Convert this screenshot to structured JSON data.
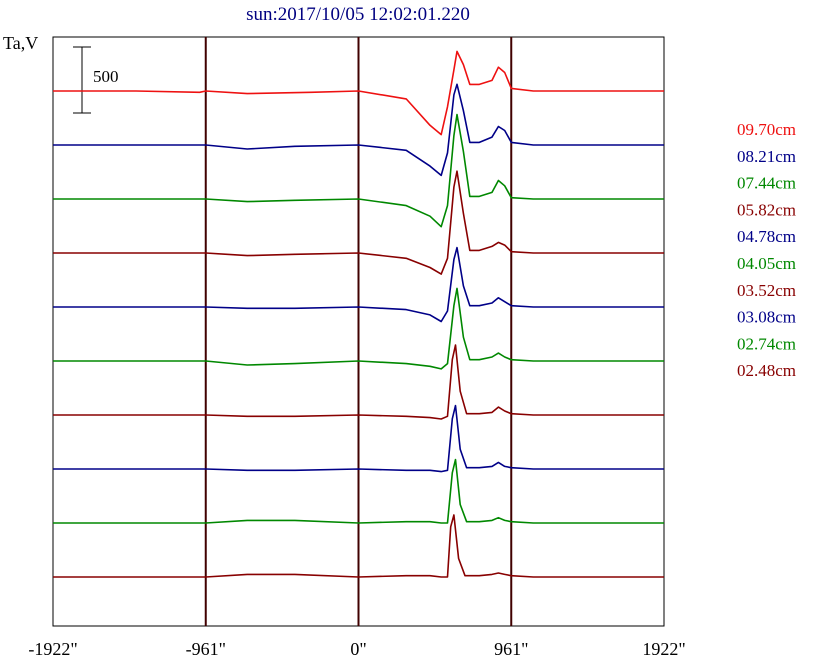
{
  "chart_data": {
    "type": "line",
    "title": "sun:2017/10/05 12:02:01.220",
    "ylabel": "Ta,V",
    "scale_bar_label": "500",
    "x_ticks": [
      {
        "label": "-1922\"",
        "value": -1922
      },
      {
        "label": "-961\"",
        "value": -961
      },
      {
        "label": "0\"",
        "value": 0
      },
      {
        "label": "961\"",
        "value": 961
      },
      {
        "label": "1922\"",
        "value": 1922
      }
    ],
    "xlim": [
      -1922,
      1922
    ],
    "grid_x": [
      -961,
      0,
      961
    ],
    "legend_position": "right",
    "series": [
      {
        "name": "09.70cm",
        "color": "#ee1111",
        "baseline": 0,
        "points": [
          [
            -1922,
            0
          ],
          [
            -1400,
            0
          ],
          [
            -1000,
            -10
          ],
          [
            -961,
            0
          ],
          [
            -700,
            -20
          ],
          [
            -300,
            -10
          ],
          [
            0,
            0
          ],
          [
            300,
            -60
          ],
          [
            450,
            -260
          ],
          [
            520,
            -330
          ],
          [
            560,
            -120
          ],
          [
            600,
            160
          ],
          [
            620,
            300
          ],
          [
            660,
            200
          ],
          [
            700,
            50
          ],
          [
            760,
            50
          ],
          [
            840,
            80
          ],
          [
            880,
            180
          ],
          [
            920,
            140
          ],
          [
            961,
            20
          ],
          [
            1100,
            0
          ],
          [
            1922,
            0
          ]
        ]
      },
      {
        "name": "08.21cm",
        "color": "#000088",
        "baseline": 0,
        "points": [
          [
            -1922,
            0
          ],
          [
            -961,
            0
          ],
          [
            -700,
            -30
          ],
          [
            -400,
            -10
          ],
          [
            0,
            0
          ],
          [
            300,
            -40
          ],
          [
            450,
            -160
          ],
          [
            520,
            -230
          ],
          [
            560,
            -60
          ],
          [
            600,
            380
          ],
          [
            620,
            460
          ],
          [
            660,
            260
          ],
          [
            700,
            20
          ],
          [
            760,
            20
          ],
          [
            840,
            60
          ],
          [
            880,
            140
          ],
          [
            920,
            110
          ],
          [
            961,
            20
          ],
          [
            1100,
            0
          ],
          [
            1922,
            0
          ]
        ]
      },
      {
        "name": "07.44cm",
        "color": "#008800",
        "baseline": 0,
        "points": [
          [
            -1922,
            0
          ],
          [
            -961,
            0
          ],
          [
            -700,
            -20
          ],
          [
            -400,
            -10
          ],
          [
            0,
            0
          ],
          [
            300,
            -50
          ],
          [
            450,
            -130
          ],
          [
            520,
            -210
          ],
          [
            560,
            -50
          ],
          [
            600,
            480
          ],
          [
            620,
            640
          ],
          [
            660,
            360
          ],
          [
            700,
            20
          ],
          [
            760,
            20
          ],
          [
            840,
            50
          ],
          [
            880,
            140
          ],
          [
            920,
            100
          ],
          [
            961,
            10
          ],
          [
            1100,
            0
          ],
          [
            1922,
            0
          ]
        ]
      },
      {
        "name": "05.82cm",
        "color": "#880000",
        "baseline": 0,
        "points": [
          [
            -1922,
            0
          ],
          [
            -961,
            0
          ],
          [
            -700,
            -20
          ],
          [
            -400,
            -10
          ],
          [
            0,
            0
          ],
          [
            300,
            -40
          ],
          [
            450,
            -110
          ],
          [
            520,
            -160
          ],
          [
            560,
            -40
          ],
          [
            600,
            500
          ],
          [
            620,
            620
          ],
          [
            660,
            300
          ],
          [
            700,
            20
          ],
          [
            760,
            20
          ],
          [
            840,
            50
          ],
          [
            880,
            80
          ],
          [
            920,
            60
          ],
          [
            961,
            10
          ],
          [
            1100,
            0
          ],
          [
            1922,
            0
          ]
        ]
      },
      {
        "name": "04.78cm",
        "color": "#000088",
        "baseline": 0,
        "points": [
          [
            -1922,
            0
          ],
          [
            -961,
            0
          ],
          [
            -700,
            -10
          ],
          [
            -400,
            -10
          ],
          [
            0,
            0
          ],
          [
            300,
            -20
          ],
          [
            450,
            -60
          ],
          [
            520,
            -110
          ],
          [
            560,
            -30
          ],
          [
            600,
            360
          ],
          [
            620,
            450
          ],
          [
            660,
            160
          ],
          [
            700,
            10
          ],
          [
            760,
            10
          ],
          [
            840,
            30
          ],
          [
            880,
            70
          ],
          [
            920,
            40
          ],
          [
            961,
            10
          ],
          [
            1100,
            0
          ],
          [
            1922,
            0
          ]
        ]
      },
      {
        "name": "04.05cm",
        "color": "#008800",
        "baseline": 0,
        "points": [
          [
            -1922,
            0
          ],
          [
            -961,
            0
          ],
          [
            -700,
            -30
          ],
          [
            -400,
            -20
          ],
          [
            0,
            0
          ],
          [
            300,
            -20
          ],
          [
            450,
            -40
          ],
          [
            520,
            -60
          ],
          [
            560,
            -20
          ],
          [
            600,
            420
          ],
          [
            620,
            550
          ],
          [
            660,
            180
          ],
          [
            700,
            10
          ],
          [
            760,
            10
          ],
          [
            840,
            30
          ],
          [
            880,
            60
          ],
          [
            920,
            30
          ],
          [
            961,
            10
          ],
          [
            1100,
            0
          ],
          [
            1922,
            0
          ]
        ]
      },
      {
        "name": "03.52cm",
        "color": "#880000",
        "baseline": 0,
        "points": [
          [
            -1922,
            0
          ],
          [
            -961,
            0
          ],
          [
            -700,
            -10
          ],
          [
            -400,
            -10
          ],
          [
            0,
            0
          ],
          [
            300,
            -10
          ],
          [
            450,
            -20
          ],
          [
            520,
            -30
          ],
          [
            560,
            -10
          ],
          [
            590,
            420
          ],
          [
            610,
            530
          ],
          [
            640,
            180
          ],
          [
            680,
            10
          ],
          [
            760,
            10
          ],
          [
            840,
            20
          ],
          [
            880,
            60
          ],
          [
            920,
            30
          ],
          [
            961,
            10
          ],
          [
            1100,
            0
          ],
          [
            1922,
            0
          ]
        ]
      },
      {
        "name": "03.08cm",
        "color": "#000088",
        "baseline": 0,
        "points": [
          [
            -1922,
            0
          ],
          [
            -961,
            0
          ],
          [
            -700,
            -10
          ],
          [
            -400,
            -10
          ],
          [
            0,
            0
          ],
          [
            300,
            -10
          ],
          [
            450,
            -10
          ],
          [
            520,
            -20
          ],
          [
            560,
            -10
          ],
          [
            590,
            380
          ],
          [
            610,
            480
          ],
          [
            640,
            150
          ],
          [
            680,
            10
          ],
          [
            760,
            10
          ],
          [
            840,
            20
          ],
          [
            880,
            50
          ],
          [
            920,
            20
          ],
          [
            961,
            10
          ],
          [
            1100,
            0
          ],
          [
            1922,
            0
          ]
        ]
      },
      {
        "name": "02.74cm",
        "color": "#008800",
        "baseline": 0,
        "points": [
          [
            -1922,
            0
          ],
          [
            -961,
            0
          ],
          [
            -700,
            20
          ],
          [
            -400,
            20
          ],
          [
            0,
            0
          ],
          [
            300,
            10
          ],
          [
            450,
            10
          ],
          [
            520,
            0
          ],
          [
            560,
            0
          ],
          [
            590,
            380
          ],
          [
            610,
            480
          ],
          [
            640,
            140
          ],
          [
            680,
            10
          ],
          [
            760,
            10
          ],
          [
            840,
            20
          ],
          [
            880,
            40
          ],
          [
            920,
            20
          ],
          [
            961,
            10
          ],
          [
            1100,
            0
          ],
          [
            1922,
            0
          ]
        ]
      },
      {
        "name": "02.48cm",
        "color": "#880000",
        "baseline": 0,
        "points": [
          [
            -1922,
            0
          ],
          [
            -961,
            0
          ],
          [
            -700,
            20
          ],
          [
            -400,
            20
          ],
          [
            0,
            0
          ],
          [
            300,
            10
          ],
          [
            450,
            10
          ],
          [
            520,
            0
          ],
          [
            560,
            0
          ],
          [
            580,
            380
          ],
          [
            600,
            470
          ],
          [
            630,
            140
          ],
          [
            670,
            10
          ],
          [
            760,
            10
          ],
          [
            840,
            20
          ],
          [
            880,
            30
          ],
          [
            920,
            20
          ],
          [
            961,
            10
          ],
          [
            1100,
            0
          ],
          [
            1922,
            0
          ]
        ]
      }
    ]
  }
}
